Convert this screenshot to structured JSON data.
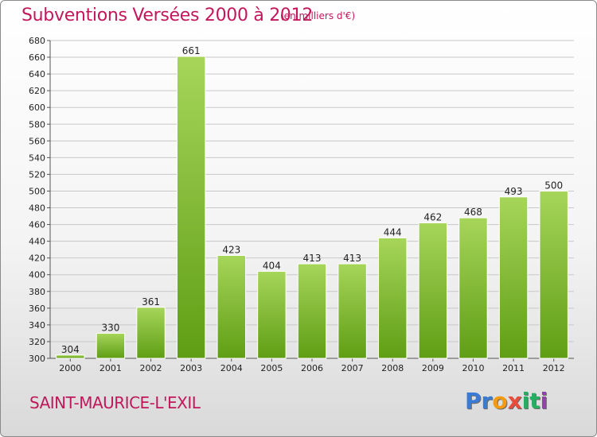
{
  "header": {
    "title": "Subventions Versées 2000 à 2012",
    "unit_note": "(en milliers d'€)"
  },
  "footer": {
    "city": "SAINT-MAURICE-L'EXIL",
    "logo": {
      "letters": [
        "P",
        "r",
        "o",
        "x",
        "i",
        "t",
        "i"
      ],
      "colors": [
        "#3a7bd5",
        "#3a7bd5",
        "#f39c12",
        "#e74c3c",
        "#27ae60",
        "#27ae60",
        "#8e44ad"
      ]
    }
  },
  "colors": {
    "bar_light": "#a6d55a",
    "bar_dark": "#5f9e14",
    "grid": "#c8c8c8",
    "text": "#222222"
  },
  "chart_data": {
    "type": "bar",
    "categories": [
      "2000",
      "2001",
      "2002",
      "2003",
      "2004",
      "2005",
      "2006",
      "2007",
      "2008",
      "2009",
      "2010",
      "2011",
      "2012"
    ],
    "values": [
      304,
      330,
      361,
      661,
      423,
      404,
      413,
      413,
      444,
      462,
      468,
      493,
      500
    ],
    "data_labels": [
      "304",
      "330",
      "361",
      "661",
      "423",
      "404",
      "413",
      "413",
      "444",
      "462",
      "468",
      "493",
      "500"
    ],
    "title": "Subventions Versées 2000 à 2012",
    "xlabel": "",
    "ylabel": "",
    "ylim": [
      300,
      680
    ],
    "yticks": [
      300,
      320,
      340,
      360,
      380,
      400,
      420,
      440,
      460,
      480,
      500,
      520,
      540,
      560,
      580,
      600,
      620,
      640,
      660,
      680
    ],
    "grid": true,
    "legend": "none"
  }
}
